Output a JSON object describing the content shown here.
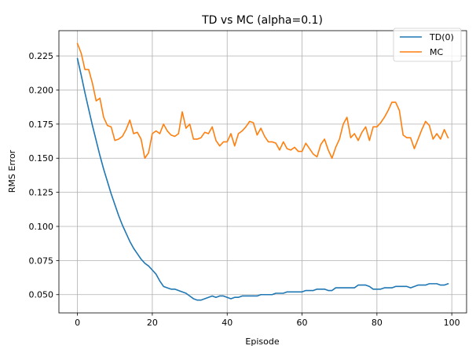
{
  "chart_data": {
    "type": "line",
    "title": "TD vs MC (alpha=0.1)",
    "xlabel": "Episode",
    "ylabel": "RMS Error",
    "xlim": [
      -4.95,
      103.95
    ],
    "ylim": [
      0.0366,
      0.2435
    ],
    "xticks": [
      0,
      20,
      40,
      60,
      80,
      100
    ],
    "xtick_labels": [
      "0",
      "20",
      "40",
      "60",
      "80",
      "100"
    ],
    "yticks": [
      0.05,
      0.075,
      0.1,
      0.125,
      0.15,
      0.175,
      0.2,
      0.225
    ],
    "ytick_labels": [
      "0.050",
      "0.075",
      "0.100",
      "0.125",
      "0.150",
      "0.175",
      "0.200",
      "0.225"
    ],
    "grid": true,
    "legend_position": "top-right",
    "x": [
      0,
      1,
      2,
      3,
      4,
      5,
      6,
      7,
      8,
      9,
      10,
      11,
      12,
      13,
      14,
      15,
      16,
      17,
      18,
      19,
      20,
      21,
      22,
      23,
      24,
      25,
      26,
      27,
      28,
      29,
      30,
      31,
      32,
      33,
      34,
      35,
      36,
      37,
      38,
      39,
      40,
      41,
      42,
      43,
      44,
      45,
      46,
      47,
      48,
      49,
      50,
      51,
      52,
      53,
      54,
      55,
      56,
      57,
      58,
      59,
      60,
      61,
      62,
      63,
      64,
      65,
      66,
      67,
      68,
      69,
      70,
      71,
      72,
      73,
      74,
      75,
      76,
      77,
      78,
      79,
      80,
      81,
      82,
      83,
      84,
      85,
      86,
      87,
      88,
      89,
      90,
      91,
      92,
      93,
      94,
      95,
      96,
      97,
      98,
      99
    ],
    "series": [
      {
        "name": "TD(0)",
        "color": "#1f77b4",
        "values": [
          0.223,
          0.211,
          0.198,
          0.186,
          0.174,
          0.163,
          0.152,
          0.142,
          0.133,
          0.124,
          0.116,
          0.108,
          0.101,
          0.095,
          0.089,
          0.084,
          0.08,
          0.076,
          0.073,
          0.071,
          0.068,
          0.065,
          0.06,
          0.056,
          0.055,
          0.054,
          0.054,
          0.053,
          0.052,
          0.051,
          0.049,
          0.047,
          0.046,
          0.046,
          0.047,
          0.048,
          0.049,
          0.048,
          0.049,
          0.049,
          0.048,
          0.047,
          0.048,
          0.048,
          0.049,
          0.049,
          0.049,
          0.049,
          0.049,
          0.05,
          0.05,
          0.05,
          0.05,
          0.051,
          0.051,
          0.051,
          0.052,
          0.052,
          0.052,
          0.052,
          0.052,
          0.053,
          0.053,
          0.053,
          0.054,
          0.054,
          0.054,
          0.053,
          0.053,
          0.055,
          0.055,
          0.055,
          0.055,
          0.055,
          0.055,
          0.057,
          0.057,
          0.057,
          0.056,
          0.054,
          0.054,
          0.054,
          0.055,
          0.055,
          0.055,
          0.056,
          0.056,
          0.056,
          0.056,
          0.055,
          0.056,
          0.057,
          0.057,
          0.057,
          0.058,
          0.058,
          0.058,
          0.057,
          0.057,
          0.058
        ]
      },
      {
        "name": "MC",
        "color": "#ff7f0e",
        "values": [
          0.234,
          0.227,
          0.215,
          0.215,
          0.205,
          0.192,
          0.194,
          0.18,
          0.174,
          0.173,
          0.163,
          0.164,
          0.166,
          0.171,
          0.178,
          0.168,
          0.169,
          0.164,
          0.15,
          0.154,
          0.168,
          0.17,
          0.168,
          0.175,
          0.17,
          0.167,
          0.166,
          0.168,
          0.184,
          0.172,
          0.175,
          0.164,
          0.164,
          0.165,
          0.169,
          0.168,
          0.173,
          0.163,
          0.159,
          0.162,
          0.162,
          0.168,
          0.159,
          0.168,
          0.17,
          0.173,
          0.177,
          0.176,
          0.167,
          0.172,
          0.166,
          0.162,
          0.162,
          0.161,
          0.156,
          0.162,
          0.157,
          0.156,
          0.158,
          0.155,
          0.155,
          0.161,
          0.157,
          0.153,
          0.151,
          0.16,
          0.164,
          0.156,
          0.15,
          0.158,
          0.164,
          0.175,
          0.18,
          0.165,
          0.168,
          0.163,
          0.169,
          0.173,
          0.163,
          0.173,
          0.173,
          0.176,
          0.18,
          0.185,
          0.191,
          0.191,
          0.185,
          0.167,
          0.165,
          0.165,
          0.157,
          0.164,
          0.171,
          0.177,
          0.174,
          0.164,
          0.168,
          0.164,
          0.171,
          0.165
        ]
      }
    ]
  }
}
